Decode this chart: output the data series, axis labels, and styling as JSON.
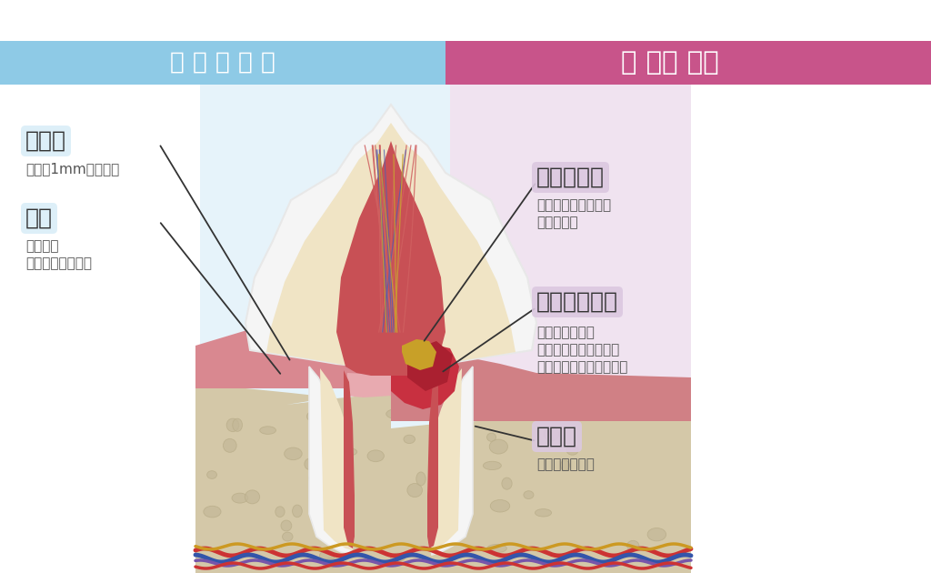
{
  "bg_color": "#ffffff",
  "header_left_color": "#8ecae6",
  "header_right_color": "#c8548a",
  "header_left_text_spaced": "正 常 な 状 態",
  "header_right_text_spaced": "歯 　周 　病",
  "left_bg_color": "#daeef8",
  "right_bg_color": "#e8d5e8",
  "label_bg_left": "#daeef8",
  "label_bg_right": "#dbc8e0",
  "label1_title": "歯肉溝",
  "label1_sub": "深さが1mm程度まで",
  "label2_title": "歯肉",
  "label2_sub1": "ピンクで",
  "label2_sub2": "引き締まっている",
  "label3_title": "歯垢・歯石",
  "label3_sub1": "歯周病菌など細菌の",
  "label3_sub2": "温床になる",
  "label4_title": "歯周ポケット",
  "label4_sub1": "歯周病菌により",
  "label4_sub2": "歯肉に炎症がおこり、",
  "label4_sub3": "歯肉溝が深くなっている",
  "label5_title": "歯槽骨",
  "label5_sub": "溶け始めている"
}
